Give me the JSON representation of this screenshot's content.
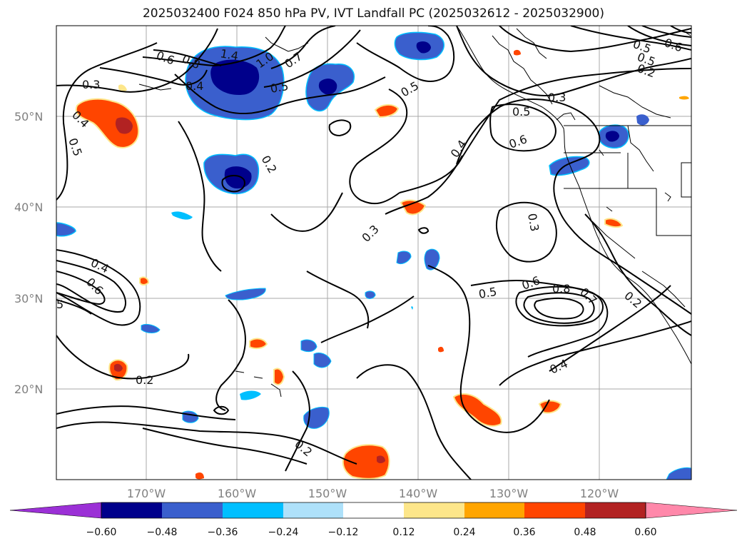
{
  "title": "2025032400 F024 850 hPa PV, IVT Landfall PC (2025032612 - 2025032900)",
  "lat_labels": [
    "50°N",
    "40°N",
    "30°N",
    "20°N"
  ],
  "lon_labels": [
    "170°W",
    "160°W",
    "150°W",
    "140°W",
    "130°W",
    "120°W"
  ],
  "contour_labels": [
    "0.3",
    "0.6",
    "0.8",
    "1.4",
    "1.0",
    "0.7",
    "0.4",
    "0.5",
    "0.5",
    "0.3",
    "0.5",
    "0.6",
    "0.4",
    "0.5",
    "0.4",
    "0.2",
    "0.3",
    "0.3",
    "0.4",
    "0.6",
    "0.5",
    "0.6",
    "0.8",
    "0.7",
    "0.2",
    "0.4",
    "0.2",
    "0.2",
    "0.5",
    "0.6",
    "0.5",
    "0.2",
    "5"
  ],
  "colorbar": {
    "ticks": [
      "−0.60",
      "−0.48",
      "−0.36",
      "−0.24",
      "−0.12",
      "0.12",
      "0.24",
      "0.36",
      "0.48",
      "0.60"
    ],
    "colors": {
      "under": "#9b30d6",
      "c1": "#00008b",
      "c2": "#3a5fcd",
      "c3": "#00bfff",
      "c4": "#aee1fa",
      "c5": "#ffffff",
      "c6": "#fde68a",
      "c7": "#ffa500",
      "c8": "#ff4500",
      "c9": "#b22222",
      "over": "#ff88aa"
    }
  }
}
